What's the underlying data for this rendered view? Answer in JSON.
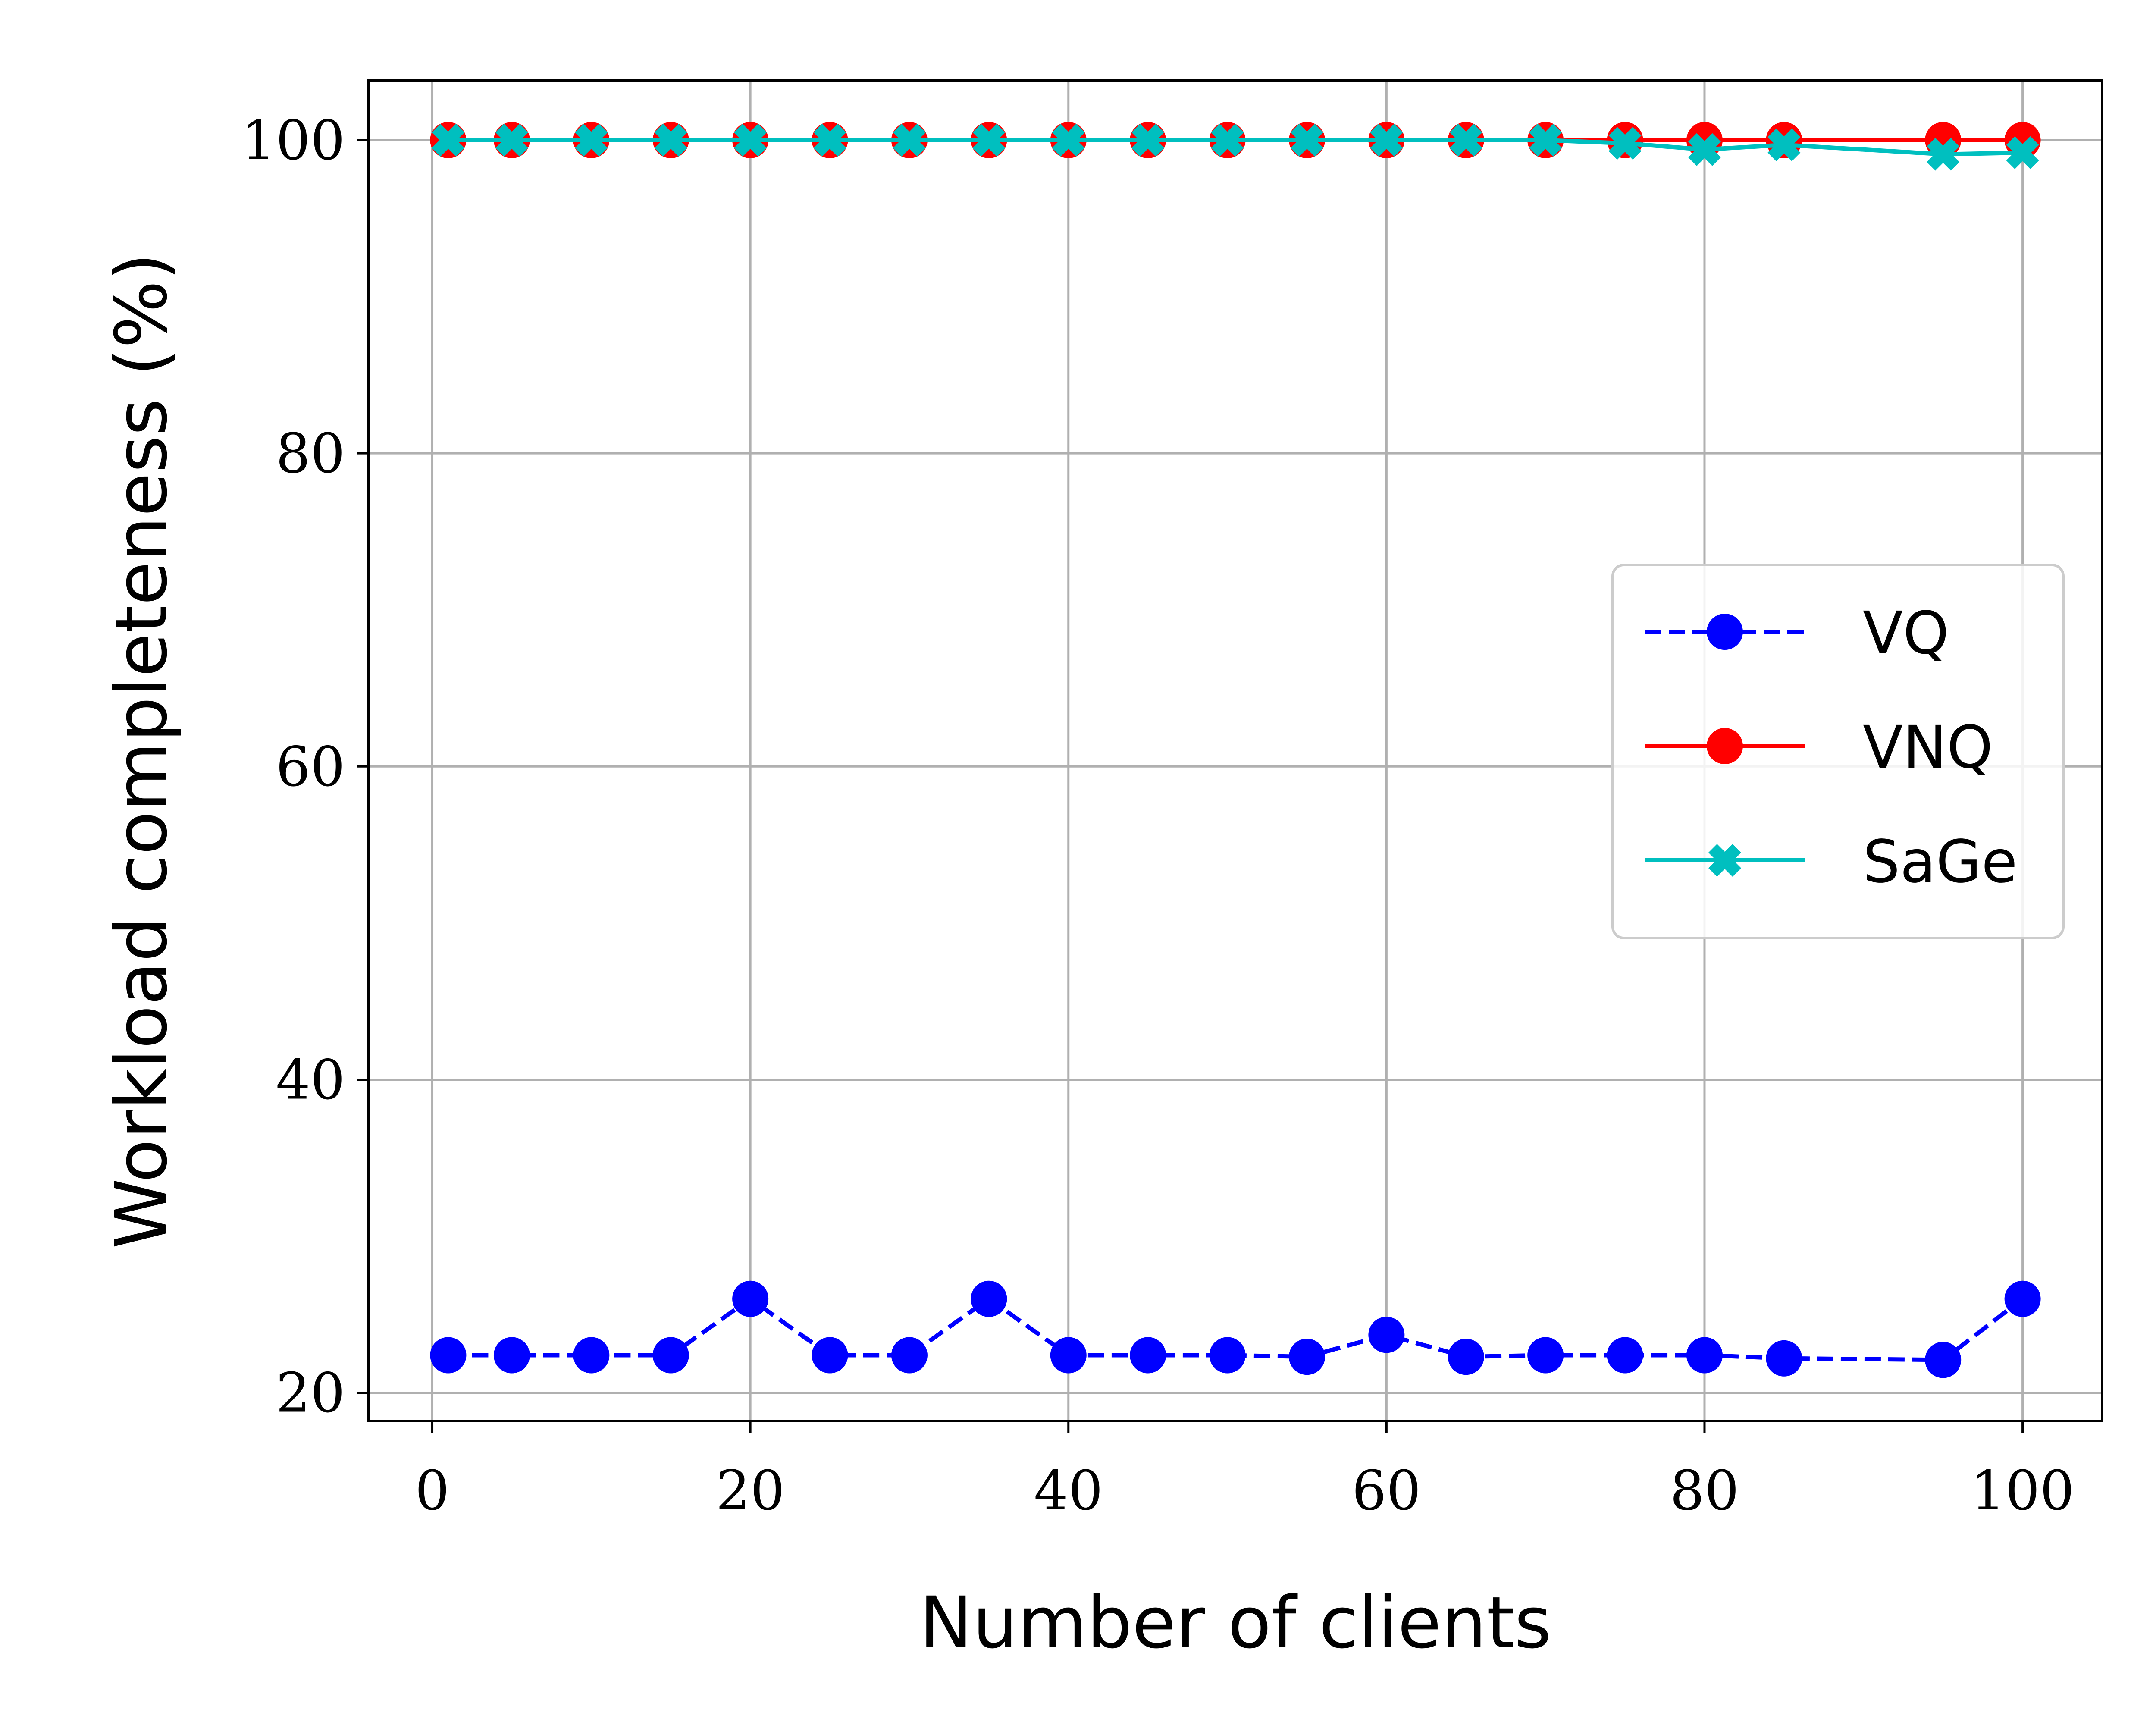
{
  "chart_data": {
    "type": "line",
    "title": "",
    "xlabel": "Number of clients",
    "ylabel": "Workload completeness (%)",
    "xlim": [
      -4,
      105
    ],
    "ylim": [
      18.2,
      103.8
    ],
    "xticks": [
      0,
      20,
      40,
      60,
      80,
      100
    ],
    "yticks": [
      20,
      40,
      60,
      80,
      100
    ],
    "x_tick_labels": [
      "0",
      "20",
      "40",
      "60",
      "80",
      "100"
    ],
    "y_tick_labels": [
      "20",
      "40",
      "60",
      "80",
      "100"
    ],
    "grid": true,
    "legend_position": "center-right",
    "series": [
      {
        "name": "VQ",
        "color": "#0000ff",
        "line_style": "dashed",
        "marker": "circle",
        "x": [
          1,
          5,
          10,
          15,
          20,
          25,
          30,
          35,
          40,
          45,
          50,
          55,
          60,
          65,
          70,
          75,
          80,
          85,
          95,
          100
        ],
        "values": [
          22.4,
          22.4,
          22.4,
          22.4,
          26.0,
          22.4,
          22.4,
          26.0,
          22.4,
          22.4,
          22.4,
          22.3,
          23.7,
          22.3,
          22.4,
          22.4,
          22.4,
          22.2,
          22.1,
          26.0
        ]
      },
      {
        "name": "VNQ",
        "color": "#ff0000",
        "line_style": "solid",
        "marker": "circle",
        "x": [
          1,
          5,
          10,
          15,
          20,
          25,
          30,
          35,
          40,
          45,
          50,
          55,
          60,
          65,
          70,
          75,
          80,
          85,
          95,
          100
        ],
        "values": [
          100,
          100,
          100,
          100,
          100,
          100,
          100,
          100,
          100,
          100,
          100,
          100,
          100,
          100,
          100,
          100,
          100,
          100,
          100,
          100
        ]
      },
      {
        "name": "SaGe",
        "color": "#00bfbf",
        "line_style": "solid",
        "marker": "x-filled",
        "x": [
          1,
          5,
          10,
          15,
          20,
          25,
          30,
          35,
          40,
          45,
          50,
          55,
          60,
          65,
          70,
          75,
          80,
          85,
          95,
          100
        ],
        "values": [
          100,
          100,
          100,
          100,
          100,
          100,
          100,
          100,
          100,
          100,
          100,
          100,
          100,
          100,
          100,
          99.8,
          99.4,
          99.7,
          99.1,
          99.2
        ]
      }
    ]
  }
}
